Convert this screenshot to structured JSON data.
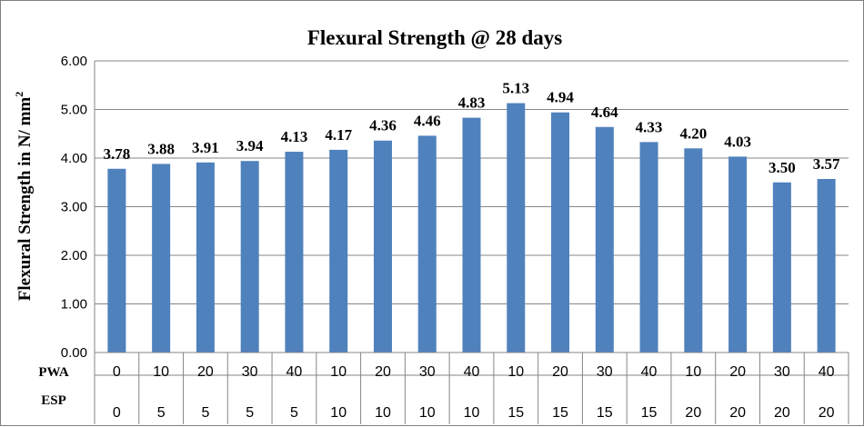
{
  "chart_data": {
    "type": "bar",
    "title": "Flexural Strength @ 28 days",
    "ylabel": "Flexural Strength in N/ mm",
    "ylabel_sup": "2",
    "ylim": [
      0,
      6
    ],
    "yticks": [
      "0.00",
      "1.00",
      "2.00",
      "3.00",
      "4.00",
      "5.00",
      "6.00"
    ],
    "grid": true,
    "bar_color": "#4f81bd",
    "category_rows": [
      {
        "label": "PWA",
        "values": [
          "0",
          "10",
          "20",
          "30",
          "40",
          "10",
          "20",
          "30",
          "40",
          "10",
          "20",
          "30",
          "40",
          "10",
          "20",
          "30",
          "40"
        ]
      },
      {
        "label": "ESP",
        "values": [
          "0",
          "5",
          "5",
          "5",
          "5",
          "10",
          "10",
          "10",
          "10",
          "15",
          "15",
          "15",
          "15",
          "20",
          "20",
          "20",
          "20"
        ]
      }
    ],
    "values": [
      3.78,
      3.88,
      3.91,
      3.94,
      4.13,
      4.17,
      4.36,
      4.46,
      4.83,
      5.13,
      4.94,
      4.64,
      4.33,
      4.2,
      4.03,
      3.5,
      3.57
    ],
    "data_labels": [
      "3.78",
      "3.88",
      "3.91",
      "3.94",
      "4.13",
      "4.17",
      "4.36",
      "4.46",
      "4.83",
      "5.13",
      "4.94",
      "4.64",
      "4.33",
      "4.20",
      "4.03",
      "3.50",
      "3.57"
    ]
  }
}
